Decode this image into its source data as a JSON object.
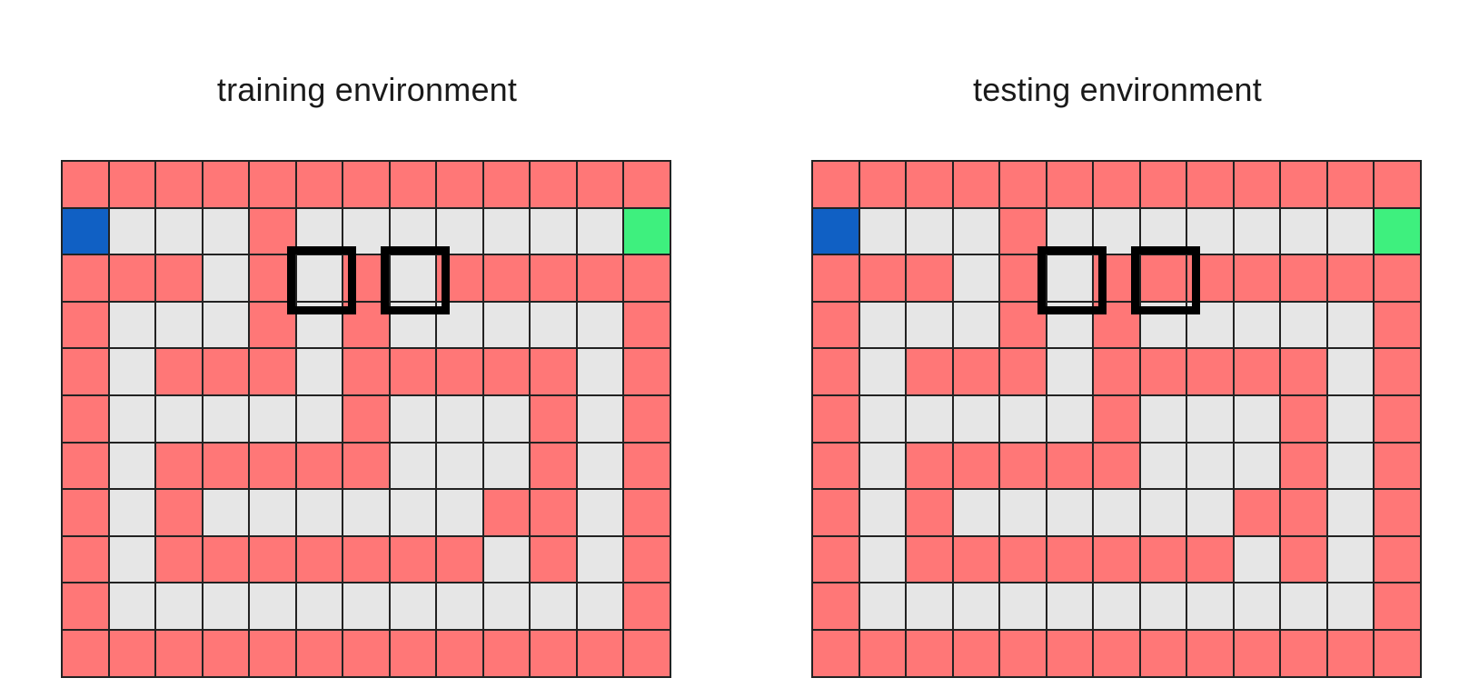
{
  "panels": [
    {
      "title": "training environment",
      "grid": [
        "WWWWWWWWWWWWW",
        "S...W.......G",
        "WWW.W.W.WWWWW",
        "W...W.W.....W",
        "W.WWW.WWWWW.W",
        "W.....W...W.W",
        "W.WWWWW...W.W",
        "W.W......WW.W",
        "W.WWWWWWW.W.W",
        "W...........W",
        "WWWWWWWWWWWWW"
      ],
      "highlighted_cells": [
        [
          2,
          5
        ],
        [
          2,
          7
        ]
      ]
    },
    {
      "title": "testing environment",
      "grid": [
        "WWWWWWWWWWWWW",
        "S...W.......G",
        "WWW.W.WWWWWWW",
        "W...W.W.....W",
        "W.WWW.WWWWW.W",
        "W.....W...W.W",
        "W.WWWWW...W.W",
        "W.W......WW.W",
        "W.WWWWWWW.W.W",
        "W...........W",
        "WWWWWWWWWWWWW"
      ],
      "highlighted_cells": [
        [
          2,
          5
        ],
        [
          2,
          7
        ]
      ]
    }
  ],
  "legend": {
    "wall_color": "#ff7777",
    "free_color": "#e6e6e6",
    "start_color": "#1060c4",
    "goal_color": "#3ef07e",
    "marker_color": "#000000"
  }
}
